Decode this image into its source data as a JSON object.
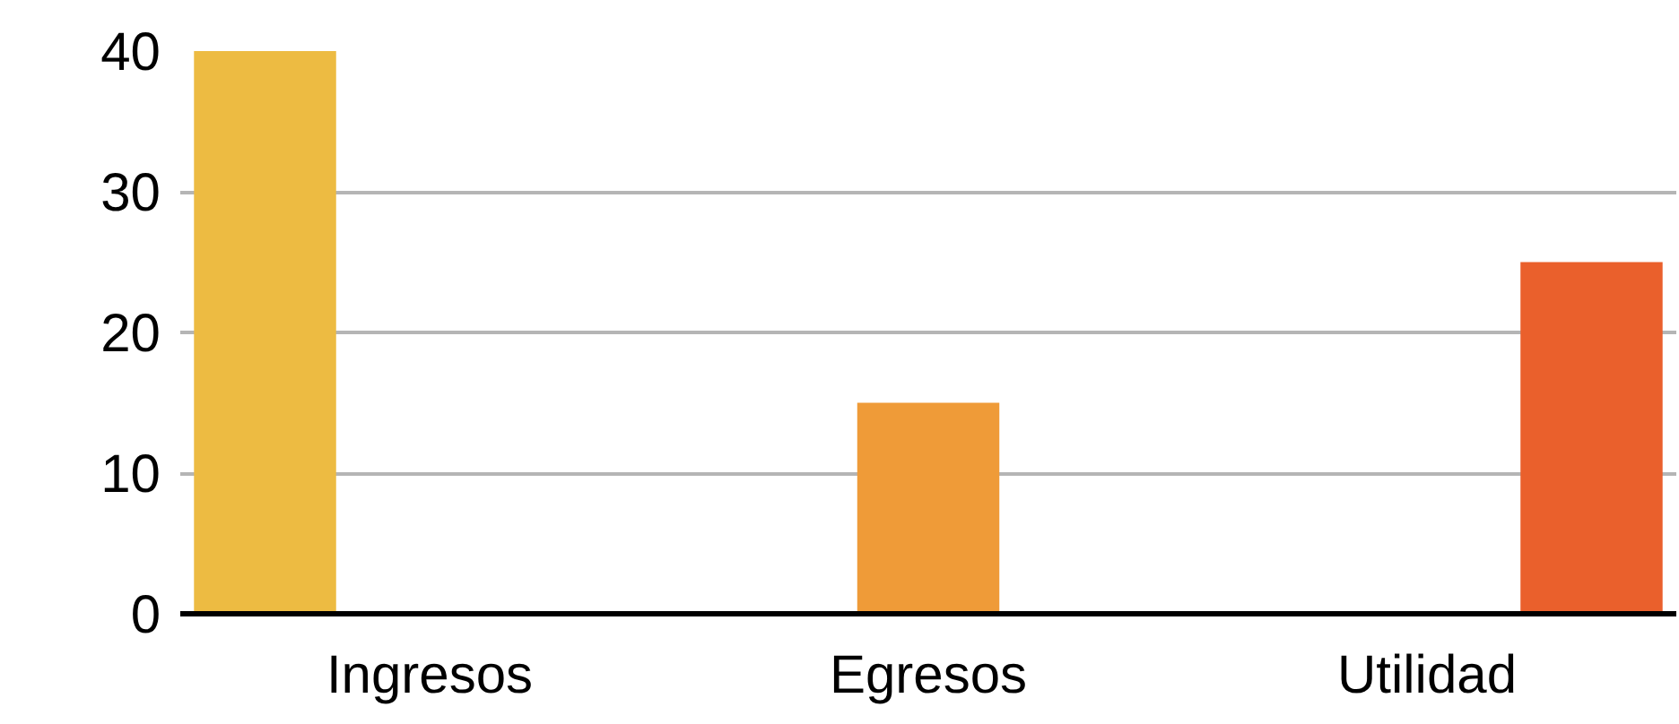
{
  "chart_data": {
    "type": "bar",
    "categories": [
      "Ingresos",
      "Egresos",
      "Utilidad"
    ],
    "series": [
      {
        "color": "#edbb42",
        "values": [
          40,
          null,
          null
        ]
      },
      {
        "color": "#ef9b38",
        "values": [
          null,
          15,
          null
        ]
      },
      {
        "color": "#ea602c",
        "values": [
          null,
          null,
          25
        ]
      }
    ],
    "ylim": [
      0,
      40
    ],
    "yticks": [
      0,
      10,
      20,
      30,
      40
    ],
    "grid": "y"
  }
}
